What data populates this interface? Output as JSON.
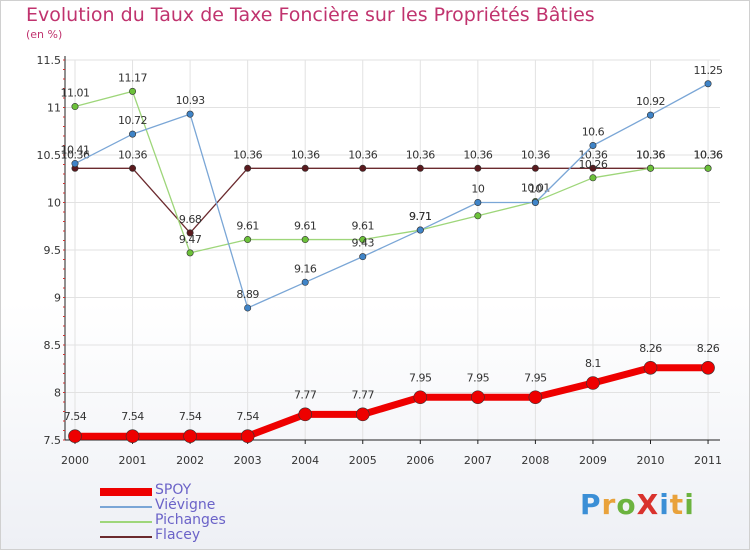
{
  "title": "Evolution du Taux de Taxe Foncière sur les Propriétés Bâties",
  "unit_label": "(en %)",
  "colors": {
    "title": "#c0336e",
    "axis": "#222222",
    "grid": "#e2e2e2",
    "label": "#333333"
  },
  "logo": {
    "text": "ProXiti",
    "letters": [
      "P",
      "r",
      "o",
      "X",
      "i",
      "t",
      "i"
    ],
    "colors": [
      "#3b8fd6",
      "#e9a23b",
      "#6cb33f",
      "#d9322d",
      "#3b8fd6",
      "#e9a23b",
      "#6cb33f"
    ]
  },
  "chart_data": {
    "type": "line",
    "title": "Evolution du Taux de Taxe Foncière sur les Propriétés Bâties",
    "ylabel": "(en %)",
    "xlabel": "",
    "categories": [
      "2000",
      "2001",
      "2002",
      "2003",
      "2004",
      "2005",
      "2006",
      "2007",
      "2008",
      "2009",
      "2010",
      "2011"
    ],
    "ylim": [
      7.5,
      11.5
    ],
    "yticks": [
      "7.5",
      "8",
      "8.5",
      "9",
      "9.5",
      "10",
      "10.5",
      "11",
      "11.5"
    ],
    "grid": true,
    "legend_position": "bottom-left",
    "series": [
      {
        "name": "Flacey",
        "color": "#6b2a2e",
        "marker": "#5a1a1e",
        "width": 1.3,
        "radius": 3.2,
        "values": [
          10.36,
          10.36,
          9.68,
          10.36,
          10.36,
          10.36,
          10.36,
          10.36,
          10.36,
          10.36,
          10.36,
          10.36
        ],
        "labels": [
          "10.36",
          "10.36",
          "9.68",
          "10.36",
          "10.36",
          "10.36",
          "10.36",
          "10.36",
          "10.36",
          "10.36",
          "10.36",
          "10.36"
        ]
      },
      {
        "name": "Pichanges",
        "color": "#9ed67a",
        "marker": "#6cc13a",
        "width": 1.3,
        "radius": 3.2,
        "values": [
          11.01,
          11.17,
          9.47,
          9.61,
          9.61,
          9.61,
          9.71,
          9.86,
          10.01,
          10.26,
          10.36,
          10.36
        ],
        "labels": [
          "11.01",
          "11.17",
          "9.47",
          "9.61",
          "9.61",
          "9.61",
          "9.71",
          "",
          "10.01",
          "10.26",
          "10.36",
          "10.36"
        ]
      },
      {
        "name": "Viévigne",
        "color": "#7aa6d6",
        "marker": "#3f84c8",
        "width": 1.3,
        "radius": 3.2,
        "values": [
          10.41,
          10.72,
          10.93,
          8.89,
          9.16,
          9.43,
          9.71,
          10,
          10,
          10.6,
          10.92,
          11.25
        ],
        "labels": [
          "10.41",
          "10.72",
          "10.93",
          "8.89",
          "9.16",
          "9.43",
          "9.71",
          "10",
          "10",
          "10.6",
          "10.92",
          "11.25"
        ]
      },
      {
        "name": "SPOY",
        "color": "#ee0000",
        "marker": "#ee0000",
        "width": 7,
        "radius": 6.5,
        "values": [
          7.54,
          7.54,
          7.54,
          7.54,
          7.77,
          7.77,
          7.95,
          7.95,
          7.95,
          8.1,
          8.26,
          8.26
        ],
        "labels": [
          "7.54",
          "7.54",
          "7.54",
          "7.54",
          "7.77",
          "7.77",
          "7.95",
          "7.95",
          "7.95",
          "8.1",
          "8.26",
          "8.26"
        ]
      }
    ],
    "legend": [
      "SPOY",
      "Viévigne",
      "Pichanges",
      "Flacey"
    ]
  }
}
